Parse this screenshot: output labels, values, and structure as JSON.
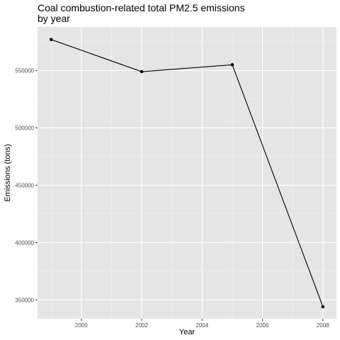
{
  "chart_data": {
    "type": "line",
    "title_lines": [
      "Coal combustion-related total PM2.5 emissions",
      "by year"
    ],
    "xlabel": "Year",
    "ylabel": "Emissions (tons)",
    "x": [
      1999,
      2002,
      2005,
      2008
    ],
    "series": [
      {
        "values": [
          577000,
          549000,
          555000,
          344000
        ]
      }
    ],
    "xlim": [
      1998.55,
      2008.45
    ],
    "ylim": [
      333500,
      588000
    ],
    "x_ticks": [
      2000,
      2002,
      2004,
      2006,
      2008
    ],
    "x_tick_labels": [
      "2000",
      "2002",
      "2004",
      "2006",
      "2008"
    ],
    "y_ticks": [
      350000,
      400000,
      450000,
      500000,
      550000
    ],
    "y_tick_labels": [
      "350000",
      "400000",
      "450000",
      "500000",
      "550000"
    ],
    "grid": true,
    "colors": {
      "panel": "#e5e5e5",
      "grid_major": "#ffffff",
      "grid_minor": "#f2f2f2",
      "line": "#000000",
      "tick_label": "#4d4d4d",
      "tick_mark": "#333333"
    }
  }
}
